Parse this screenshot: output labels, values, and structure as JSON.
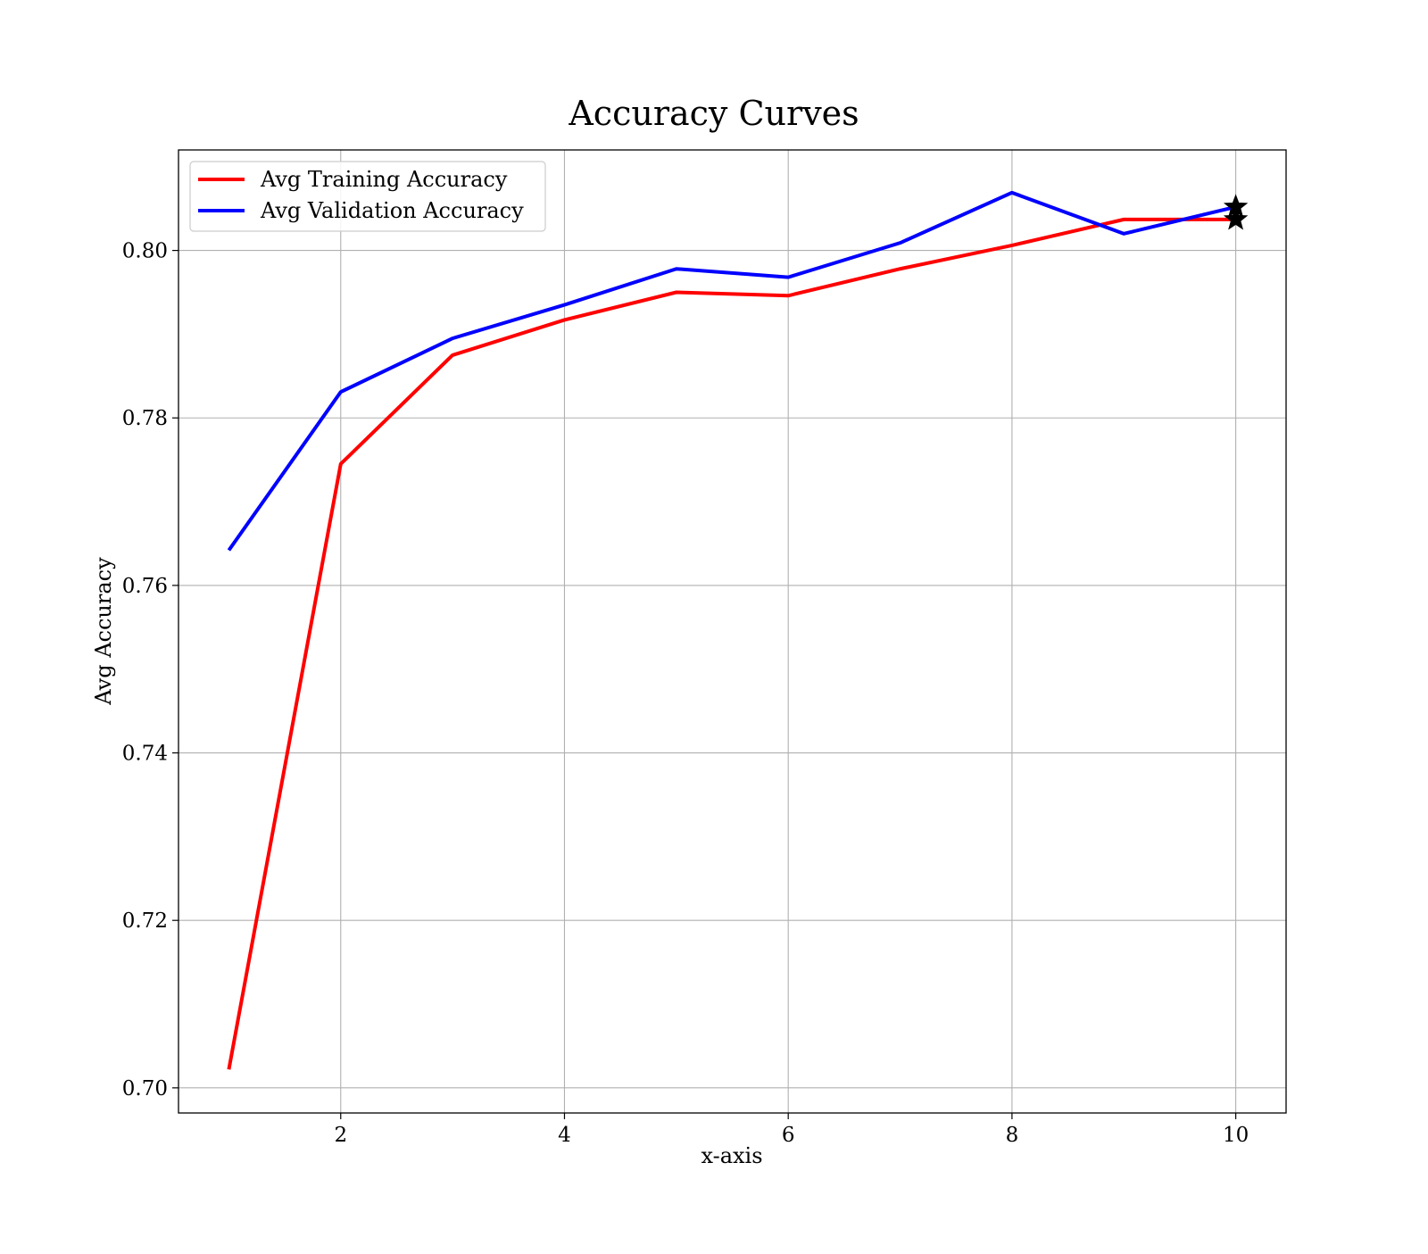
{
  "chart_data": {
    "type": "line",
    "title": "Accuracy Curves",
    "xlabel": "x-axis",
    "ylabel": "Avg Accuracy",
    "x": [
      1,
      2,
      3,
      4,
      5,
      6,
      7,
      8,
      9,
      10
    ],
    "xlim": [
      0.55,
      10.45
    ],
    "ylim": [
      0.697,
      0.812
    ],
    "xticks": [
      2,
      4,
      6,
      8,
      10
    ],
    "xtick_labels": [
      "2",
      "4",
      "6",
      "8",
      "10"
    ],
    "yticks": [
      0.7,
      0.72,
      0.74,
      0.76,
      0.78,
      0.8
    ],
    "ytick_labels": [
      "0.70",
      "0.72",
      "0.74",
      "0.76",
      "0.78",
      "0.80"
    ],
    "grid": true,
    "legend_position": "upper-left",
    "series": [
      {
        "name": "Avg Training Accuracy",
        "color": "#ff0000",
        "values": [
          0.7022,
          0.7745,
          0.7875,
          0.7917,
          0.795,
          0.7946,
          0.7978,
          0.8006,
          0.8037,
          0.8037
        ]
      },
      {
        "name": "Avg Validation Accuracy",
        "color": "#0000ff",
        "values": [
          0.7642,
          0.7831,
          0.7895,
          0.7935,
          0.7978,
          0.7968,
          0.8009,
          0.8069,
          0.802,
          0.8052
        ]
      }
    ],
    "markers": [
      {
        "series": "Avg Training Accuracy",
        "x": 10,
        "y": 0.8037,
        "shape": "star",
        "color": "#000000"
      },
      {
        "series": "Avg Validation Accuracy",
        "x": 10,
        "y": 0.8052,
        "shape": "star",
        "color": "#000000"
      }
    ]
  }
}
